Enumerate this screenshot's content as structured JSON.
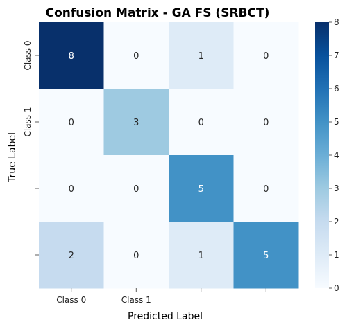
{
  "chart_data": {
    "type": "heatmap",
    "title": "Confusion Matrix - GA FS (SRBCT)",
    "xlabel": "Predicted Label",
    "ylabel": "True Label",
    "x_tick_labels": [
      "Class 0",
      "Class 1",
      "",
      ""
    ],
    "y_tick_labels": [
      "Class 0",
      "Class 1",
      "",
      ""
    ],
    "matrix": [
      [
        8,
        0,
        1,
        0
      ],
      [
        0,
        3,
        0,
        0
      ],
      [
        0,
        0,
        5,
        0
      ],
      [
        2,
        0,
        1,
        5
      ]
    ],
    "colorbar": {
      "min": 0,
      "max": 8,
      "ticks": [
        0,
        1,
        2,
        3,
        4,
        5,
        6,
        7,
        8
      ]
    },
    "colormap": "Blues",
    "colors": {
      "low": "#f7fbff",
      "high": "#08306b"
    }
  }
}
